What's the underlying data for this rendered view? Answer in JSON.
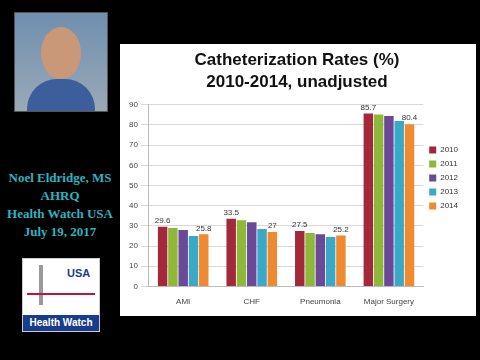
{
  "header": {
    "name": "Noel Eldridge, MS",
    "affiliation": "AHRQ",
    "event": "Health Watch USA",
    "date": "July 19, 2017"
  },
  "logo": {
    "top": "USA",
    "bottom": "Health Watch"
  },
  "chart_data": {
    "type": "bar",
    "title": "Catheterization Rates (%)",
    "subtitle": "2010-2014, unadjusted",
    "categories": [
      "AMI",
      "CHF",
      "Pneumonia",
      "Major Surgery"
    ],
    "series": [
      {
        "name": "2010",
        "color": "#a3283a",
        "values": [
          29.6,
          33.5,
          27.5,
          85.7
        ],
        "data_labels": true
      },
      {
        "name": "2011",
        "color": "#8db83a",
        "values": [
          29,
          32.8,
          26.5,
          85.2
        ]
      },
      {
        "name": "2012",
        "color": "#6a4a98",
        "values": [
          28,
          31.8,
          25.8,
          84.5
        ]
      },
      {
        "name": "2013",
        "color": "#3aa8c6",
        "values": [
          25,
          28.5,
          24.5,
          82
        ]
      },
      {
        "name": "2014",
        "color": "#f08a30",
        "values": [
          25.8,
          27,
          25.2,
          80.4
        ],
        "data_labels": true
      }
    ],
    "ylim": [
      0,
      90
    ],
    "yticks": [
      0,
      10,
      20,
      30,
      40,
      50,
      60,
      70,
      80,
      90
    ],
    "grid": true,
    "legend": "right"
  }
}
